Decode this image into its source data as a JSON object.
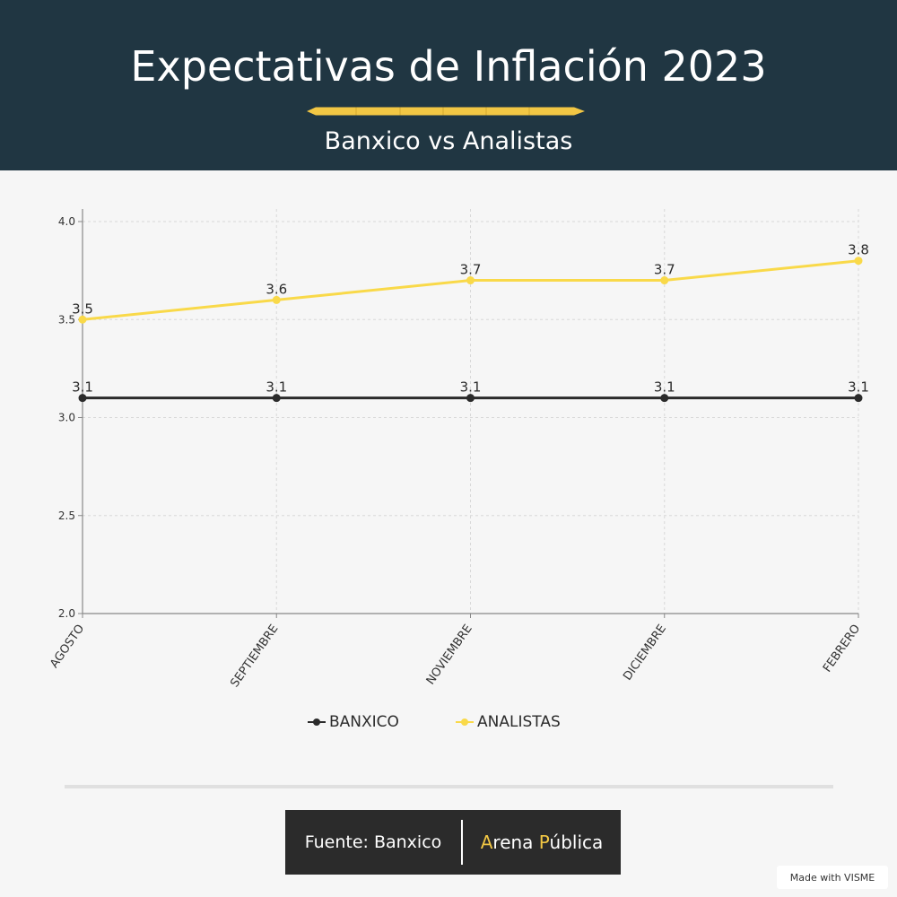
{
  "header": {
    "title": "Expectativas de Inflación 2023",
    "subtitle": "Banxico vs Analistas"
  },
  "chart_data": {
    "type": "line",
    "categories": [
      "AGOSTO",
      "SEPTIEMBRE",
      "NOVIEMBRE",
      "DICIEMBRE",
      "FEBRERO"
    ],
    "series": [
      {
        "name": "BANXICO",
        "values": [
          3.1,
          3.1,
          3.1,
          3.1,
          3.1
        ],
        "color": "#2b2b2b"
      },
      {
        "name": "ANALISTAS",
        "values": [
          3.5,
          3.6,
          3.7,
          3.7,
          3.8
        ],
        "color": "#f9d949"
      }
    ],
    "ylim": [
      2.0,
      4.0
    ],
    "yticks": [
      "2.0",
      "2.5",
      "3.0",
      "3.5",
      "4.0"
    ],
    "grid": true,
    "legend_position": "bottom"
  },
  "footer": {
    "source": "Fuente: Banxico",
    "brand_a": "A",
    "brand_rena": "rena ",
    "brand_p": "P",
    "brand_ublica": "ública"
  },
  "badge": {
    "text": "Made with VISME"
  }
}
